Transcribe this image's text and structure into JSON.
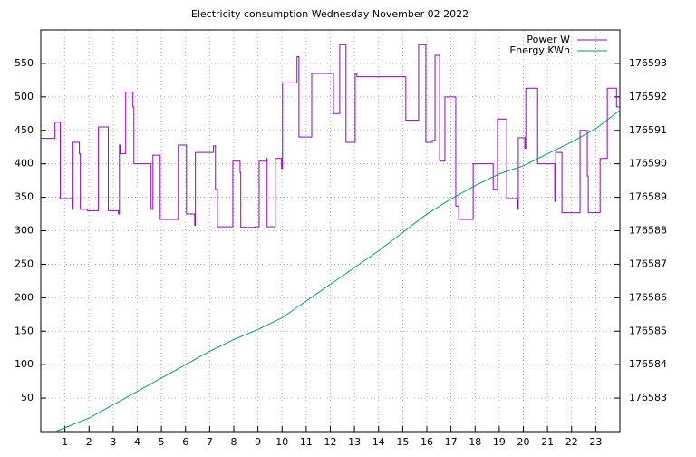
{
  "chart_data": {
    "type": "line",
    "title": "Electricity consumption Wednesday November 02 2022",
    "xlim": [
      0,
      24
    ],
    "xticks": [
      1,
      2,
      3,
      4,
      5,
      6,
      7,
      8,
      9,
      10,
      11,
      12,
      13,
      14,
      15,
      16,
      17,
      18,
      19,
      20,
      21,
      22,
      23
    ],
    "ylim": [
      0,
      600
    ],
    "yticks": [
      50,
      100,
      150,
      200,
      250,
      300,
      350,
      400,
      450,
      500,
      550
    ],
    "y2lim": [
      176582,
      176594
    ],
    "y2ticks": [
      176583,
      176584,
      176585,
      176586,
      176587,
      176588,
      176589,
      176590,
      176591,
      176592,
      176593
    ],
    "grid": true,
    "legend": "top-right",
    "series": [
      {
        "name": "Power W",
        "color": "#9400d3",
        "step": true,
        "x": [
          0,
          0.59,
          0.81,
          1.3,
          1.34,
          1.6,
          1.64,
          1.94,
          2.39,
          2.8,
          3.22,
          3.26,
          3.29,
          3.52,
          3.82,
          3.86,
          4.57,
          4.65,
          4.95,
          5.7,
          6.04,
          6.38,
          6.41,
          7.16,
          7.24,
          7.32,
          7.96,
          8.26,
          8.29,
          8.89,
          9.05,
          9.35,
          9.38,
          9.72,
          9.98,
          10.02,
          10.62,
          10.7,
          11.23,
          12.13,
          12.39,
          12.65,
          13.03,
          13.1,
          15.13,
          15.66,
          15.96,
          16.23,
          16.34,
          16.53,
          16.75,
          17.2,
          17.32,
          17.92,
          18.75,
          18.93,
          19.31,
          19.76,
          19.79,
          20.06,
          20.1,
          20.59,
          21.3,
          21.34,
          21.6,
          22.35,
          22.65,
          22.69,
          23.18,
          23.48,
          23.86,
          24
        ],
        "values": [
          438,
          462,
          348,
          332,
          432,
          415,
          332,
          330,
          455,
          330,
          325,
          428,
          415,
          507,
          485,
          400,
          332,
          413,
          317,
          428,
          325,
          308,
          417,
          427,
          362,
          306,
          404,
          387,
          305,
          306,
          404,
          408,
          306,
          408,
          393,
          521,
          560,
          440,
          535,
          475,
          578,
          432,
          535,
          530,
          465,
          578,
          432,
          435,
          562,
          404,
          500,
          337,
          317,
          400,
          362,
          467,
          348,
          332,
          439,
          423,
          513,
          400,
          344,
          417,
          327,
          450,
          382,
          327,
          408,
          513,
          485,
          485
        ]
      },
      {
        "name": "Energy KWh",
        "color": "#009e73",
        "axis": "y2",
        "x": [
          0.6,
          2,
          3,
          4,
          5,
          6,
          7,
          8,
          9,
          10,
          11,
          12,
          13,
          14,
          15,
          16,
          17,
          18,
          19,
          20,
          21,
          22,
          23,
          24
        ],
        "values": [
          176582.0,
          176582.4,
          176582.8,
          176583.2,
          176583.6,
          176584.0,
          176584.4,
          176584.75,
          176585.05,
          176585.4,
          176585.9,
          176586.4,
          176586.9,
          176587.4,
          176587.95,
          176588.5,
          176588.95,
          176589.35,
          176589.7,
          176589.94,
          176590.3,
          176590.65,
          176591.05,
          176591.6
        ]
      }
    ]
  }
}
